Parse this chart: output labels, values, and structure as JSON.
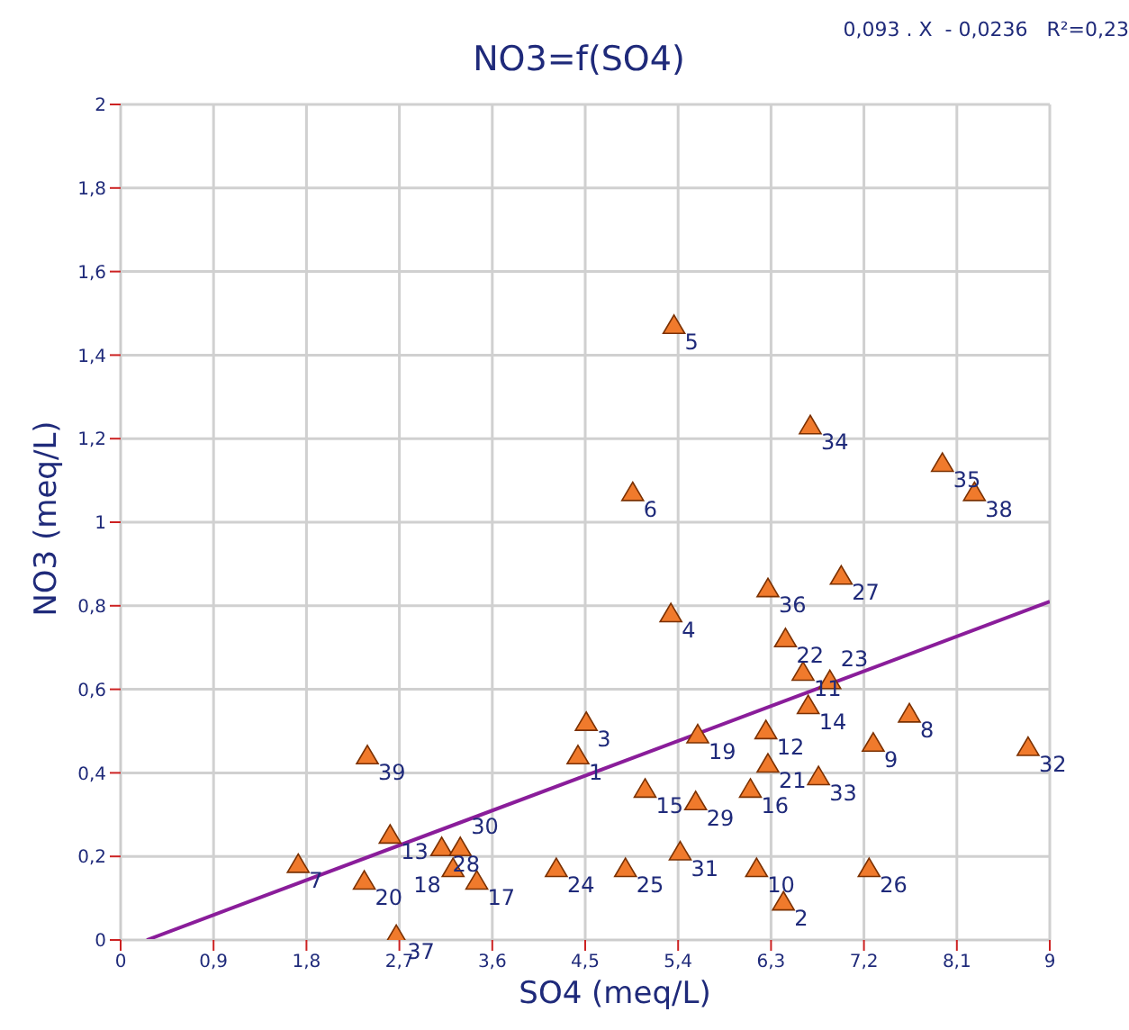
{
  "chart_data": {
    "type": "scatter",
    "title": "NO3=f(SO4)",
    "xlabel": "SO4 (meq/L)",
    "ylabel": "NO3 (meq/L)",
    "annotations": [
      "0,093 . X  - 0,0236   R²=0,23",
      {
        "text": "1",
        "x": 4.43,
        "y": 0.44
      },
      {
        "text": "2",
        "x": 6.42,
        "y": 0.09
      },
      {
        "text": "3",
        "x": 4.51,
        "y": 0.52
      },
      {
        "text": "4",
        "x": 5.33,
        "y": 0.78
      },
      {
        "text": "5",
        "x": 5.36,
        "y": 1.47
      },
      {
        "text": "6",
        "x": 4.96,
        "y": 1.07
      },
      {
        "text": "7",
        "x": 1.72,
        "y": 0.18
      },
      {
        "text": "8",
        "x": 7.64,
        "y": 0.54
      },
      {
        "text": "9",
        "x": 7.29,
        "y": 0.47
      },
      {
        "text": "10",
        "x": 6.16,
        "y": 0.17
      },
      {
        "text": "11",
        "x": 6.61,
        "y": 0.64
      },
      {
        "text": "12",
        "x": 6.25,
        "y": 0.5
      },
      {
        "text": "13",
        "x": 2.61,
        "y": 0.25
      },
      {
        "text": "14",
        "x": 6.66,
        "y": 0.56
      },
      {
        "text": "15",
        "x": 5.08,
        "y": 0.36
      },
      {
        "text": "16",
        "x": 6.1,
        "y": 0.36
      },
      {
        "text": "17",
        "x": 3.45,
        "y": 0.14
      },
      {
        "text": "18",
        "x": 3.22,
        "y": 0.17
      },
      {
        "text": "19",
        "x": 5.59,
        "y": 0.49
      },
      {
        "text": "20",
        "x": 2.36,
        "y": 0.14
      },
      {
        "text": "21",
        "x": 6.27,
        "y": 0.42
      },
      {
        "text": "22",
        "x": 6.44,
        "y": 0.72
      },
      {
        "text": "23",
        "x": 6.87,
        "y": 0.62
      },
      {
        "text": "24",
        "x": 4.22,
        "y": 0.17
      },
      {
        "text": "25",
        "x": 4.89,
        "y": 0.17
      },
      {
        "text": "26",
        "x": 7.25,
        "y": 0.17
      },
      {
        "text": "27",
        "x": 6.98,
        "y": 0.87
      },
      {
        "text": "28",
        "x": 3.11,
        "y": 0.22
      },
      {
        "text": "29",
        "x": 5.57,
        "y": 0.33
      },
      {
        "text": "30",
        "x": 3.29,
        "y": 0.22
      },
      {
        "text": "31",
        "x": 5.42,
        "y": 0.21
      },
      {
        "text": "32",
        "x": 8.79,
        "y": 0.46
      },
      {
        "text": "33",
        "x": 6.76,
        "y": 0.39
      },
      {
        "text": "34",
        "x": 6.68,
        "y": 1.23
      },
      {
        "text": "35",
        "x": 7.96,
        "y": 1.14
      },
      {
        "text": "36",
        "x": 6.27,
        "y": 0.84
      },
      {
        "text": "37",
        "x": 2.67,
        "y": 0.01
      },
      {
        "text": "38",
        "x": 8.27,
        "y": 1.07
      },
      {
        "text": "39",
        "x": 2.39,
        "y": 0.44
      }
    ],
    "xlim": [
      0,
      9
    ],
    "ylim": [
      0,
      2
    ],
    "xticks": [
      0,
      {
        "value": 0.9,
        "label": "0,9"
      },
      {
        "value": 1.8,
        "label": "1,8"
      },
      {
        "value": 2.7,
        "label": "2,7"
      },
      {
        "value": 3.6,
        "label": "3,6"
      },
      {
        "value": 4.5,
        "label": "4,5"
      },
      {
        "value": 5.4,
        "label": "5,4"
      },
      {
        "value": 6.3,
        "label": "6,3"
      },
      {
        "value": 7.2,
        "label": "7,2"
      },
      {
        "value": 8.1,
        "label": "8,1"
      },
      9
    ],
    "yticks": [
      0,
      {
        "value": 0.2,
        "label": "0,2"
      },
      {
        "value": 0.4,
        "label": "0,4"
      },
      {
        "value": 0.6,
        "label": "0,6"
      },
      {
        "value": 0.8,
        "label": "0,8"
      },
      1,
      {
        "value": 1.2,
        "label": "1,2"
      },
      {
        "value": 1.4,
        "label": "1,4"
      },
      {
        "value": 1.6,
        "label": "1,6"
      },
      {
        "value": 1.8,
        "label": "1,8"
      },
      2
    ],
    "grid": true,
    "marker": "triangle",
    "series": [
      {
        "color": "#f07a2c",
        "x": [
          4.43,
          6.42,
          4.51,
          5.33,
          5.36,
          4.96,
          1.72,
          7.64,
          7.29,
          6.16,
          6.61,
          6.25,
          2.61,
          6.66,
          5.08,
          6.1,
          3.45,
          3.22,
          5.59,
          2.36,
          6.27,
          6.44,
          6.87,
          4.22,
          4.89,
          7.25,
          6.98,
          3.11,
          5.57,
          3.29,
          5.42,
          8.79,
          6.76,
          6.68,
          7.96,
          6.27,
          2.67,
          8.27,
          2.39
        ],
        "values": [
          0.44,
          0.09,
          0.52,
          0.78,
          1.47,
          1.07,
          0.18,
          0.54,
          0.47,
          0.17,
          0.64,
          0.5,
          0.25,
          0.56,
          0.36,
          0.36,
          0.14,
          0.17,
          0.49,
          0.14,
          0.42,
          0.72,
          0.62,
          0.17,
          0.17,
          0.17,
          0.87,
          0.22,
          0.33,
          0.22,
          0.21,
          0.46,
          0.39,
          1.23,
          1.14,
          0.84,
          0.01,
          1.07,
          0.44
        ]
      },
      {
        "type": "line",
        "marker": "none",
        "color": "#8a1d9a",
        "x": [
          0.254,
          9
        ],
        "values": [
          0,
          0.81
        ]
      }
    ]
  }
}
